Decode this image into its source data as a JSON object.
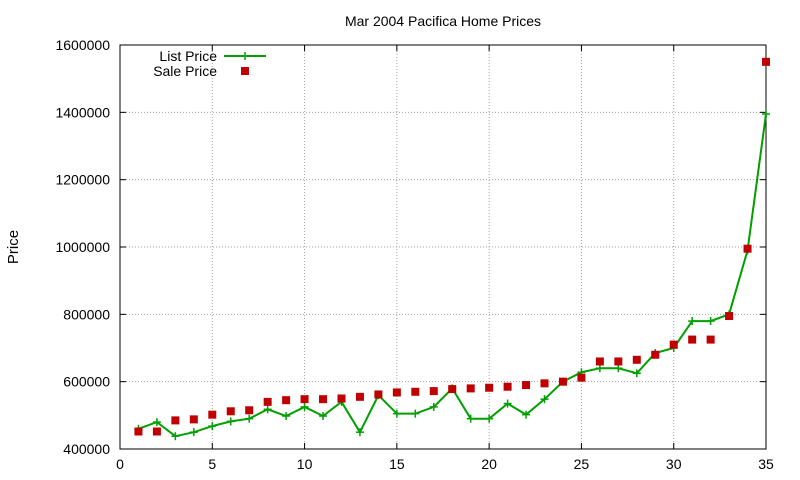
{
  "chart_data": {
    "type": "line",
    "title": "Mar 2004 Pacifica Home Prices",
    "xlabel": "",
    "ylabel": "Price",
    "xlim": [
      0,
      35
    ],
    "ylim": [
      400000,
      1600000
    ],
    "xticks": [
      0,
      5,
      10,
      15,
      20,
      25,
      30,
      35
    ],
    "yticks": [
      400000,
      600000,
      800000,
      1000000,
      1200000,
      1400000,
      1600000
    ],
    "grid": true,
    "legend_position": "top-left",
    "x": [
      1,
      2,
      3,
      4,
      5,
      6,
      7,
      8,
      9,
      10,
      11,
      12,
      13,
      14,
      15,
      16,
      17,
      18,
      19,
      20,
      21,
      22,
      23,
      24,
      25,
      26,
      27,
      28,
      29,
      30,
      31,
      32,
      33,
      34,
      35
    ],
    "series": [
      {
        "name": "List Price",
        "style": "line-points",
        "color": "#00a000",
        "values": [
          460000,
          480000,
          438000,
          450000,
          468000,
          482000,
          490000,
          518000,
          498000,
          525000,
          498000,
          540000,
          450000,
          560000,
          505000,
          505000,
          525000,
          580000,
          490000,
          490000,
          535000,
          502000,
          548000,
          600000,
          628000,
          640000,
          640000,
          625000,
          685000,
          700000,
          780000,
          780000,
          800000,
          990000,
          1395000
        ]
      },
      {
        "name": "Sale Price",
        "style": "points",
        "color": "#c00000",
        "values": [
          452000,
          452000,
          485000,
          488000,
          502000,
          512000,
          515000,
          540000,
          545000,
          548000,
          548000,
          550000,
          555000,
          562000,
          568000,
          570000,
          572000,
          578000,
          580000,
          582000,
          585000,
          590000,
          595000,
          600000,
          612000,
          660000,
          660000,
          665000,
          680000,
          710000,
          725000,
          725000,
          795000,
          995000,
          1550000
        ]
      }
    ]
  }
}
